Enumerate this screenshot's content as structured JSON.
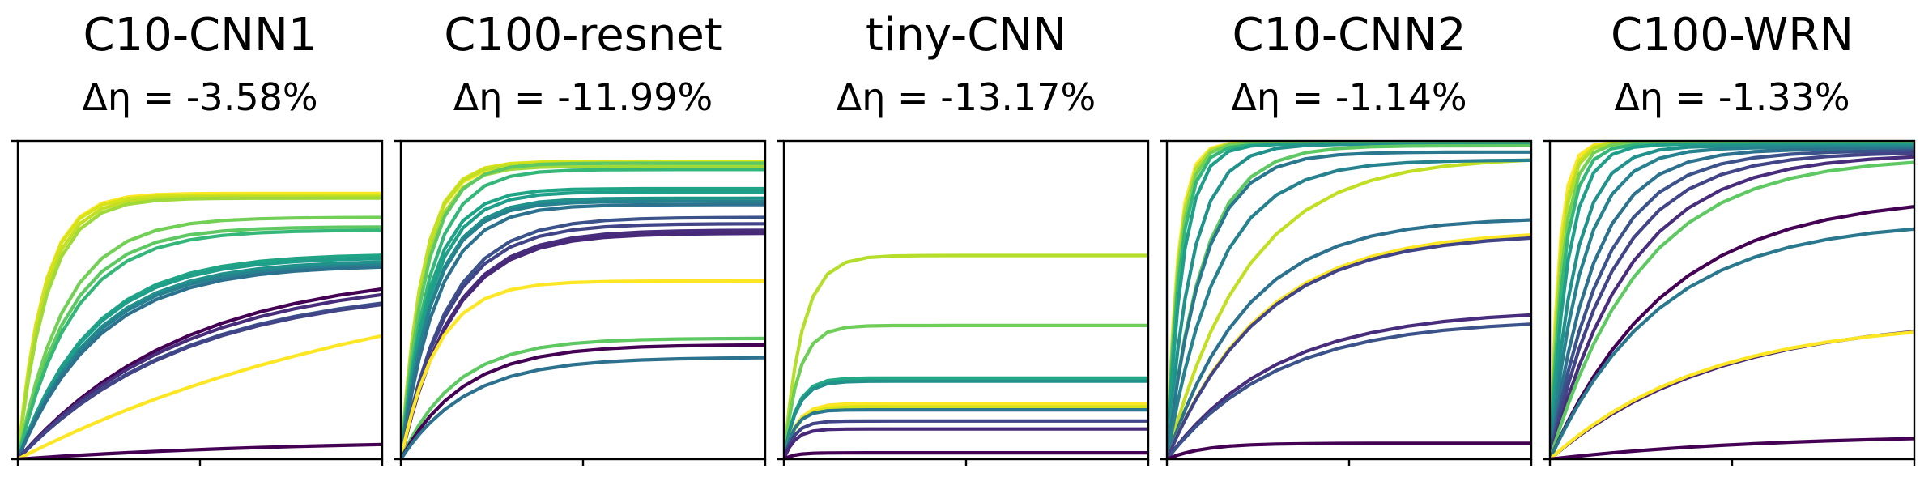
{
  "chart_data": [
    {
      "type": "line",
      "title": "C10-CNN1",
      "subtitle": "Δη = -3.58%",
      "xlim": [
        0,
        1
      ],
      "ylim": [
        0,
        1
      ],
      "x": [
        0,
        0.005,
        0.015,
        0.03,
        0.05,
        0.08,
        0.12,
        0.17,
        0.23,
        0.3,
        0.38,
        0.47,
        0.56,
        0.66,
        0.76,
        0.88,
        1.0
      ],
      "series": [
        {
          "color": "#fde725",
          "final": 0.835,
          "k": 0.07
        },
        {
          "color": "#d8e219",
          "final": 0.83,
          "k": 0.07
        },
        {
          "color": "#c2df23",
          "final": 0.825,
          "k": 0.075
        },
        {
          "color": "#9fda3a",
          "final": 0.82,
          "k": 0.08
        },
        {
          "color": "#73d056",
          "final": 0.76,
          "k": 0.13
        },
        {
          "color": "#5ec962",
          "final": 0.73,
          "k": 0.14
        },
        {
          "color": "#35b779",
          "final": 0.72,
          "k": 0.15
        },
        {
          "color": "#20a486",
          "final": 0.645,
          "k": 0.2
        },
        {
          "color": "#1f9e89",
          "final": 0.635,
          "k": 0.2
        },
        {
          "color": "#21918c",
          "final": 0.625,
          "k": 0.21
        },
        {
          "color": "#26828e",
          "final": 0.615,
          "k": 0.21
        },
        {
          "color": "#2c728e",
          "final": 0.61,
          "k": 0.22
        },
        {
          "color": "#440154",
          "final": 0.6,
          "k": 0.45
        },
        {
          "color": "#472d7b",
          "final": 0.58,
          "k": 0.45
        },
        {
          "color": "#3b528b",
          "final": 0.55,
          "k": 0.45
        },
        {
          "color": "#414487",
          "final": 0.545,
          "k": 0.45
        },
        {
          "color": "#fde725",
          "final": 0.65,
          "k": 1.1
        },
        {
          "color": "#440154",
          "final": 0.065,
          "k": 0.8
        }
      ]
    },
    {
      "type": "line",
      "title": "C100-resnet",
      "subtitle": "Δη = -11.99%",
      "xlim": [
        0,
        1
      ],
      "ylim": [
        0,
        1
      ],
      "x": [
        0,
        0.005,
        0.015,
        0.03,
        0.05,
        0.08,
        0.12,
        0.17,
        0.23,
        0.3,
        0.38,
        0.47,
        0.56,
        0.66,
        0.76,
        0.88,
        1.0
      ],
      "series": [
        {
          "color": "#fde725",
          "final": 0.925,
          "k": 0.06
        },
        {
          "color": "#d8e219",
          "final": 0.935,
          "k": 0.06
        },
        {
          "color": "#c2df23",
          "final": 0.93,
          "k": 0.06
        },
        {
          "color": "#9fda3a",
          "final": 0.92,
          "k": 0.065
        },
        {
          "color": "#5ec962",
          "final": 0.93,
          "k": 0.07
        },
        {
          "color": "#35b779",
          "final": 0.91,
          "k": 0.08
        },
        {
          "color": "#20a486",
          "final": 0.85,
          "k": 0.08
        },
        {
          "color": "#1f9e89",
          "final": 0.84,
          "k": 0.085
        },
        {
          "color": "#21918c",
          "final": 0.82,
          "k": 0.09
        },
        {
          "color": "#26828e",
          "final": 0.81,
          "k": 0.09
        },
        {
          "color": "#2c728e",
          "final": 0.8,
          "k": 0.1
        },
        {
          "color": "#3b528b",
          "final": 0.76,
          "k": 0.13
        },
        {
          "color": "#414487",
          "final": 0.74,
          "k": 0.13
        },
        {
          "color": "#472d7b",
          "final": 0.72,
          "k": 0.14
        },
        {
          "color": "#482878",
          "final": 0.71,
          "k": 0.14
        },
        {
          "color": "#fde725",
          "final": 0.56,
          "k": 0.1
        },
        {
          "color": "#5ec962",
          "final": 0.38,
          "k": 0.15
        },
        {
          "color": "#440154",
          "final": 0.36,
          "k": 0.17
        },
        {
          "color": "#2c728e",
          "final": 0.32,
          "k": 0.18
        }
      ]
    },
    {
      "type": "line",
      "title": "tiny-CNN",
      "subtitle": "Δη = -13.17%",
      "xlim": [
        0,
        1
      ],
      "ylim": [
        0,
        1
      ],
      "x": [
        0,
        0.005,
        0.015,
        0.03,
        0.05,
        0.08,
        0.12,
        0.17,
        0.23,
        0.3,
        0.38,
        0.47,
        0.56,
        0.66,
        0.76,
        0.88,
        1.0
      ],
      "series": [
        {
          "color": "#b5de2b",
          "final": 0.64,
          "k": 0.05
        },
        {
          "color": "#6ece58",
          "final": 0.42,
          "k": 0.04
        },
        {
          "color": "#22a884",
          "final": 0.255,
          "k": 0.035
        },
        {
          "color": "#21918c",
          "final": 0.245,
          "k": 0.035
        },
        {
          "color": "#fde725",
          "final": 0.175,
          "k": 0.035
        },
        {
          "color": "#d8e219",
          "final": 0.165,
          "k": 0.035
        },
        {
          "color": "#2a788e",
          "final": 0.155,
          "k": 0.03
        },
        {
          "color": "#414487",
          "final": 0.12,
          "k": 0.03
        },
        {
          "color": "#482878",
          "final": 0.095,
          "k": 0.03
        },
        {
          "color": "#440154",
          "final": 0.02,
          "k": 0.03
        }
      ]
    },
    {
      "type": "line",
      "title": "C10-CNN2",
      "subtitle": "Δη = -1.14%",
      "xlim": [
        0,
        1
      ],
      "ylim": [
        0,
        1
      ],
      "x": [
        0,
        0.005,
        0.015,
        0.03,
        0.05,
        0.08,
        0.12,
        0.17,
        0.23,
        0.3,
        0.38,
        0.47,
        0.56,
        0.66,
        0.76,
        0.88,
        1.0
      ],
      "series": [
        {
          "color": "#fde725",
          "final": 0.995,
          "k": 0.03
        },
        {
          "color": "#b5de2b",
          "final": 0.995,
          "k": 0.032
        },
        {
          "color": "#73d056",
          "final": 0.995,
          "k": 0.035
        },
        {
          "color": "#35b779",
          "final": 0.99,
          "k": 0.038
        },
        {
          "color": "#1f9e89",
          "final": 0.99,
          "k": 0.045
        },
        {
          "color": "#21918c",
          "final": 0.99,
          "k": 0.07
        },
        {
          "color": "#5ec962",
          "final": 0.985,
          "k": 0.1
        },
        {
          "color": "#2a788e",
          "final": 0.965,
          "k": 0.1
        },
        {
          "color": "#c2df23",
          "final": 0.95,
          "k": 0.22
        },
        {
          "color": "#26828e",
          "final": 0.94,
          "k": 0.14
        },
        {
          "color": "#2c728e",
          "final": 0.76,
          "k": 0.22
        },
        {
          "color": "#fde725",
          "final": 0.72,
          "k": 0.26
        },
        {
          "color": "#414487",
          "final": 0.71,
          "k": 0.26
        },
        {
          "color": "#472d7b",
          "final": 0.47,
          "k": 0.3
        },
        {
          "color": "#3b528b",
          "final": 0.44,
          "k": 0.3
        },
        {
          "color": "#440154",
          "final": 0.05,
          "k": 0.1
        }
      ]
    },
    {
      "type": "line",
      "title": "C100-WRN",
      "subtitle": "Δη = -1.33%",
      "xlim": [
        0,
        1
      ],
      "ylim": [
        0,
        1
      ],
      "x": [
        0,
        0.005,
        0.015,
        0.03,
        0.05,
        0.08,
        0.12,
        0.17,
        0.23,
        0.3,
        0.38,
        0.47,
        0.56,
        0.66,
        0.76,
        0.88,
        1.0
      ],
      "series": [
        {
          "color": "#fde725",
          "final": 0.995,
          "k": 0.025
        },
        {
          "color": "#d8e219",
          "final": 0.995,
          "k": 0.028
        },
        {
          "color": "#b5de2b",
          "final": 0.995,
          "k": 0.03
        },
        {
          "color": "#73d056",
          "final": 0.995,
          "k": 0.035
        },
        {
          "color": "#35b779",
          "final": 0.99,
          "k": 0.04
        },
        {
          "color": "#1f9e89",
          "final": 0.99,
          "k": 0.05
        },
        {
          "color": "#21918c",
          "final": 0.985,
          "k": 0.07
        },
        {
          "color": "#26828e",
          "final": 0.98,
          "k": 0.09
        },
        {
          "color": "#2c728e",
          "final": 0.975,
          "k": 0.12
        },
        {
          "color": "#3b528b",
          "final": 0.97,
          "k": 0.15
        },
        {
          "color": "#414487",
          "final": 0.965,
          "k": 0.18
        },
        {
          "color": "#472d7b",
          "final": 0.96,
          "k": 0.22
        },
        {
          "color": "#5ec962",
          "final": 0.95,
          "k": 0.25
        },
        {
          "color": "#440154",
          "final": 0.83,
          "k": 0.32
        },
        {
          "color": "#2a788e",
          "final": 0.75,
          "k": 0.3
        },
        {
          "color": "#482878",
          "final": 0.45,
          "k": 0.45
        },
        {
          "color": "#fde725",
          "final": 0.44,
          "k": 0.42
        },
        {
          "color": "#440154",
          "final": 0.08,
          "k": 0.6
        }
      ]
    }
  ]
}
